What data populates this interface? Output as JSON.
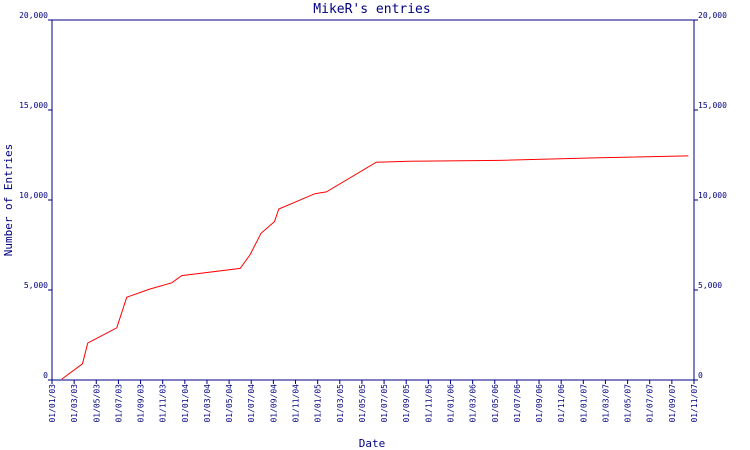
{
  "chart_data": {
    "type": "line",
    "title": "MikeR's entries",
    "x_label": "Date",
    "y_label": "Number of Entries",
    "x": [
      "28/01/03",
      "24/03/03",
      "08/04/03",
      "27/06/03",
      "24/07/03",
      "26/09/03",
      "26/11/03",
      "23/12/03",
      "01/06/04",
      "28/06/04",
      "28/07/04",
      "04/09/04",
      "16/09/04",
      "24/12/04",
      "25/01/05",
      "10/06/05",
      "10/09/05",
      "15/05/06",
      "15/02/07",
      "16/10/07"
    ],
    "series": [
      {
        "color": "#ff0000",
        "values": [
          50,
          900,
          2050,
          2900,
          4600,
          5050,
          5400,
          5800,
          6200,
          6950,
          8150,
          8800,
          9500,
          10350,
          10450,
          12100,
          12150,
          12200,
          12350,
          12450
        ]
      }
    ],
    "xlim": [
      "01/01/03",
      "01/11/07"
    ],
    "xticks": [
      "01/01/03",
      "01/03/03",
      "01/05/03",
      "01/07/03",
      "01/09/03",
      "01/11/03",
      "01/01/04",
      "01/03/04",
      "01/05/04",
      "01/07/04",
      "01/09/04",
      "01/11/04",
      "01/01/05",
      "01/03/05",
      "01/05/05",
      "01/07/05",
      "01/09/05",
      "01/11/05",
      "01/01/06",
      "01/03/06",
      "01/05/06",
      "01/07/06",
      "01/09/06",
      "01/11/06",
      "01/01/07",
      "01/03/07",
      "01/05/07",
      "01/07/07",
      "01/09/07",
      "01/11/07"
    ],
    "ylim": [
      0,
      20000
    ],
    "yticks": [
      0,
      {
        "value": 5000,
        "label": "5,000"
      },
      {
        "value": 10000,
        "label": "10,000"
      },
      {
        "value": 15000,
        "label": "15,000"
      },
      {
        "value": 20000,
        "label": "20,000"
      }
    ],
    "right_axis_ticks": true
  }
}
